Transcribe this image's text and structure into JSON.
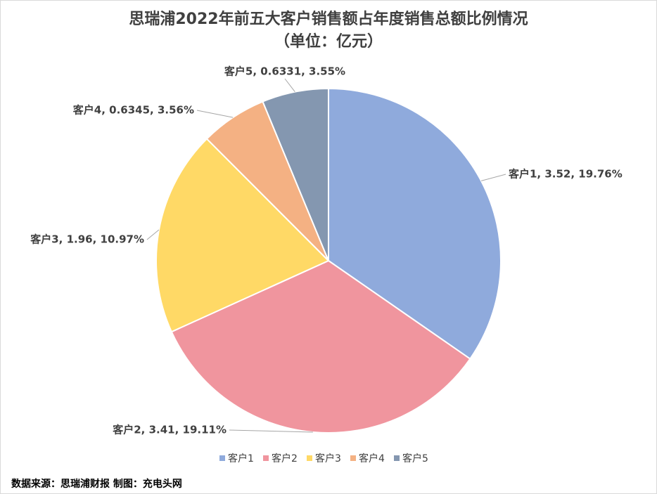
{
  "chart_data": {
    "type": "pie",
    "title": "思瑞浦2022年前五大客户销售额占年度销售总额比例情况",
    "subtitle": "（单位：亿元）",
    "categories": [
      "客户1",
      "客户2",
      "客户3",
      "客户4",
      "客户5"
    ],
    "values": [
      3.52,
      3.41,
      1.96,
      0.6345,
      0.6331
    ],
    "value_labels": [
      "客户1, 3.52, 19.76%",
      "客户2, 3.41, 19.11%",
      "客户3, 1.96, 10.97%",
      "客户4, 0.6345, 3.56%",
      "客户5, 0.6331, 3.55%"
    ],
    "colors": [
      "#8faadc",
      "#f0959e",
      "#ffd966",
      "#f4b183",
      "#8497b0"
    ],
    "legend": "bottom",
    "source": "数据来源：思瑞浦财报 制图：充电头网"
  }
}
